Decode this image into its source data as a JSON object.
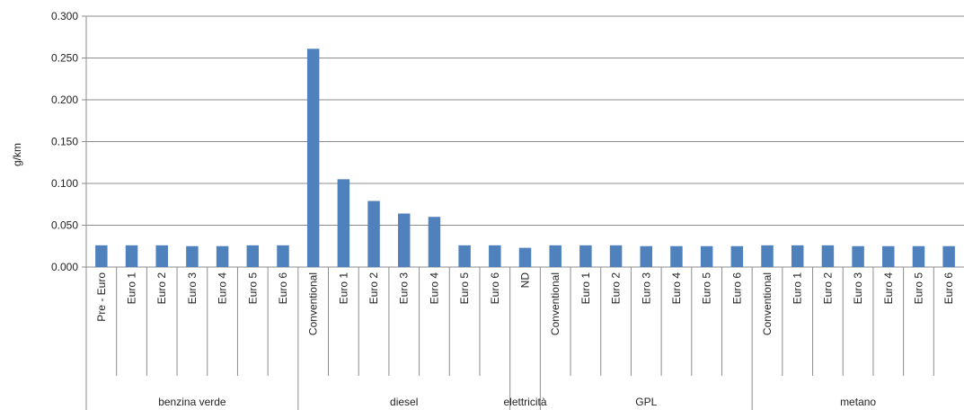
{
  "chart_data": {
    "type": "bar",
    "ylabel": "g/km",
    "ylim": [
      0,
      0.3
    ],
    "yticks": [
      "0.000",
      "0.050",
      "0.100",
      "0.150",
      "0.200",
      "0.250",
      "0.300"
    ],
    "grid": true,
    "legend": "none",
    "bar_color": "#4f81bd",
    "groups": [
      {
        "name": "benzina verde",
        "categories": [
          "Pre - Euro",
          "Euro 1",
          "Euro 2",
          "Euro 3",
          "Euro 4",
          "Euro 5",
          "Euro 6"
        ],
        "values": [
          0.026,
          0.026,
          0.026,
          0.025,
          0.025,
          0.026,
          0.026
        ]
      },
      {
        "name": "diesel",
        "categories": [
          "Conventional",
          "Euro 1",
          "Euro 2",
          "Euro 3",
          "Euro 4",
          "Euro 5",
          "Euro 6"
        ],
        "values": [
          0.261,
          0.105,
          0.079,
          0.064,
          0.06,
          0.026,
          0.026
        ]
      },
      {
        "name": "elettricità",
        "categories": [
          "ND"
        ],
        "values": [
          0.023
        ]
      },
      {
        "name": "GPL",
        "categories": [
          "Conventional",
          "Euro 1",
          "Euro 2",
          "Euro 3",
          "Euro 4",
          "Euro 5",
          "Euro 6"
        ],
        "values": [
          0.026,
          0.026,
          0.026,
          0.025,
          0.025,
          0.025,
          0.025
        ]
      },
      {
        "name": "metano",
        "categories": [
          "Conventional",
          "Euro 1",
          "Euro 2",
          "Euro 3",
          "Euro 4",
          "Euro 5",
          "Euro 6"
        ],
        "values": [
          0.026,
          0.026,
          0.026,
          0.025,
          0.025,
          0.025,
          0.025
        ]
      }
    ]
  }
}
